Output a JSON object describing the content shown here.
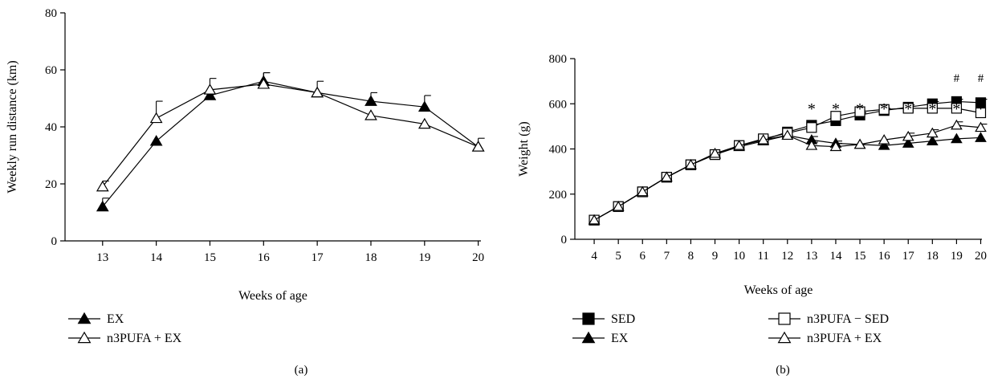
{
  "chart_data": [
    {
      "id": "a",
      "type": "line",
      "panel_label": "(a)",
      "xlabel": "Weeks of age",
      "ylabel": "Weekly run distance (km)",
      "x": [
        13,
        14,
        15,
        16,
        17,
        18,
        19,
        20
      ],
      "ylim": [
        0,
        80
      ],
      "yticks": [
        0,
        20,
        40,
        60,
        80
      ],
      "grid": false,
      "legend_position": "bottom-left",
      "series": [
        {
          "name": "EX",
          "marker": "filled-triangle",
          "values": [
            12,
            35,
            51,
            56,
            52,
            49,
            47,
            33
          ],
          "err": [
            3,
            0,
            0,
            3,
            0,
            3,
            4,
            0
          ]
        },
        {
          "name": "n3PUFA + EX",
          "marker": "open-triangle",
          "values": [
            19,
            43,
            53,
            55,
            52,
            44,
            41,
            33
          ],
          "err": [
            2,
            6,
            4,
            4,
            4,
            0,
            0,
            3
          ]
        }
      ]
    },
    {
      "id": "b",
      "type": "line",
      "panel_label": "(b)",
      "xlabel": "Weeks of age",
      "ylabel": "Weight (g)",
      "x": [
        4,
        5,
        6,
        7,
        8,
        9,
        10,
        11,
        12,
        13,
        14,
        15,
        16,
        17,
        18,
        19,
        20
      ],
      "ylim": [
        0,
        800
      ],
      "yticks": [
        0,
        200,
        400,
        600,
        800
      ],
      "grid": false,
      "legend_position": "bottom",
      "series": [
        {
          "name": "SED",
          "marker": "filled-square",
          "values": [
            85,
            145,
            210,
            275,
            330,
            375,
            415,
            440,
            475,
            505,
            525,
            550,
            570,
            585,
            600,
            610,
            605
          ],
          "err": [
            0,
            0,
            0,
            0,
            0,
            0,
            0,
            0,
            0,
            0,
            0,
            10,
            10,
            10,
            10,
            10,
            15
          ]
        },
        {
          "name": "EX",
          "marker": "filled-triangle",
          "values": [
            85,
            145,
            210,
            275,
            330,
            375,
            410,
            435,
            460,
            440,
            425,
            420,
            415,
            425,
            435,
            445,
            450
          ],
          "err": [
            0,
            0,
            0,
            0,
            0,
            0,
            0,
            0,
            0,
            15,
            10,
            0,
            0,
            0,
            0,
            0,
            0
          ]
        },
        {
          "name": "n3PUFA − SED",
          "marker": "open-square",
          "values": [
            85,
            145,
            210,
            275,
            330,
            375,
            415,
            445,
            470,
            495,
            545,
            565,
            575,
            580,
            580,
            580,
            560
          ],
          "err": [
            0,
            0,
            0,
            0,
            0,
            0,
            0,
            0,
            0,
            0,
            0,
            0,
            0,
            0,
            0,
            0,
            0
          ]
        },
        {
          "name": "n3PUFA + EX",
          "marker": "open-triangle",
          "values": [
            85,
            145,
            210,
            275,
            330,
            380,
            415,
            440,
            460,
            415,
            410,
            420,
            440,
            455,
            470,
            505,
            495
          ],
          "err": [
            0,
            0,
            0,
            0,
            0,
            0,
            0,
            0,
            0,
            15,
            15,
            0,
            0,
            15,
            15,
            15,
            15
          ]
        }
      ],
      "annotations": {
        "star": {
          "text": "*",
          "x": [
            13,
            14,
            15,
            16,
            17,
            18,
            19,
            20
          ]
        },
        "hash": {
          "text": "#",
          "x": [
            19,
            20
          ]
        }
      }
    }
  ],
  "colors": {
    "ink": "#000000",
    "background": "#ffffff"
  }
}
